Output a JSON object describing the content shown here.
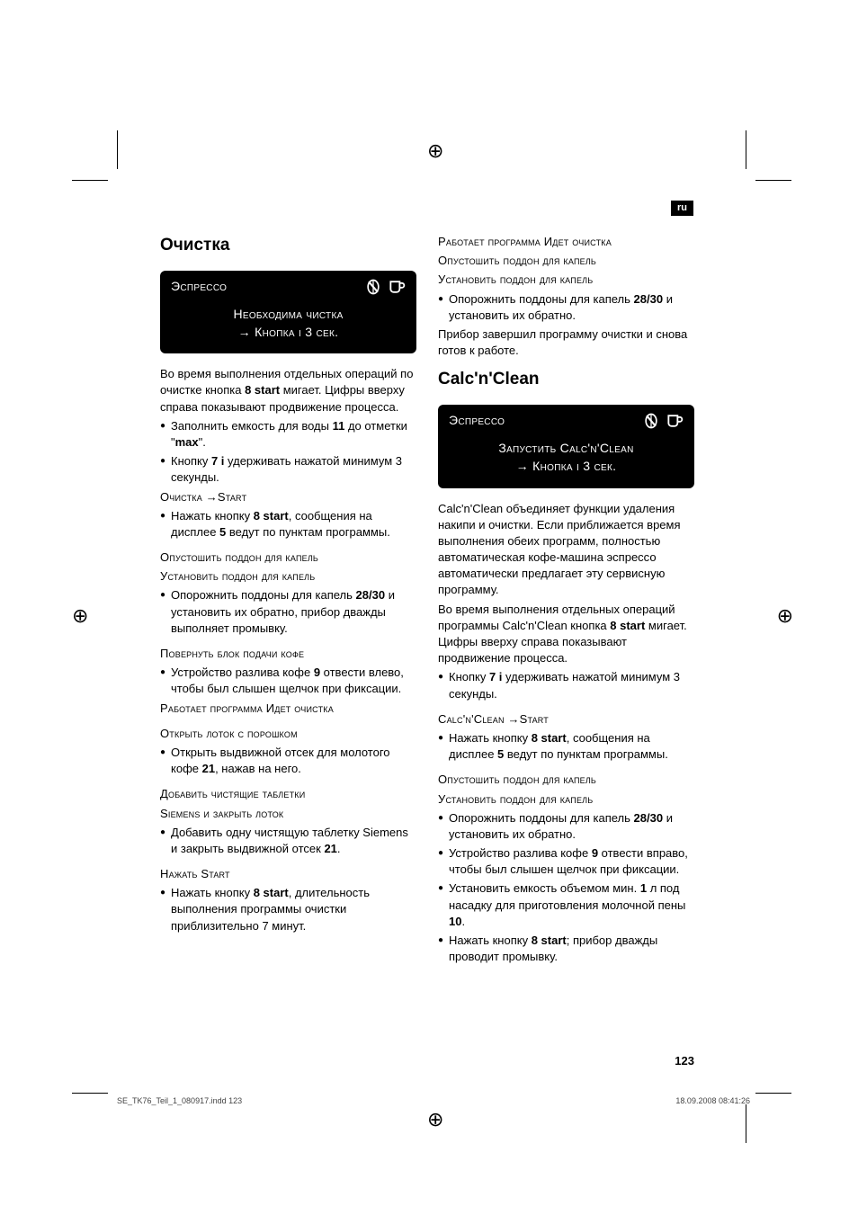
{
  "lang_tag": "ru",
  "page_number": "123",
  "footer": {
    "file": "SE_TK76_Teil_1_080917.indd   123",
    "date": "18.09.2008   08:41:26"
  },
  "left": {
    "heading": "Очистка",
    "display": {
      "label": "Эспрессо",
      "line1": "Необходима чистка",
      "line2": "→ Кнопка i 3 сек."
    },
    "intro1": "Во время выполнения отдельных операций по очистке кнопка 8 start мигает. Цифры вверху справа показывают продвижение процесса.",
    "b1": "Заполнить емкость для воды 11 до отметки \"max\".",
    "b2": "Кнопку 7 i удерживать нажатой минимум 3 секунды.",
    "sc_start": "Очистка →Start",
    "b3": "Нажать кнопку 8 start, сообщения на дисплее 5 ведут по пунктам программы.",
    "sc_drip1": "Опустошить поддон для капель",
    "sc_drip2": "Установить поддон для капель",
    "b4": "Опорожнить поддоны для капель 28/30 и установить их обратно, прибор дважды выполняет промывку.",
    "sc_turn": "Повернуть блок подачи кофе",
    "b5": "Устройство разлива кофе 9 отвести влево, чтобы был слышен щелчок при фиксации.",
    "sc_run": "Работает программа Идет очистка",
    "sc_open": "Открыть лоток с порошком",
    "b6": "Открыть выдвижной отсек для молотого кофе 21, нажав на него.",
    "sc_add1": "Добавить чистящие таблетки",
    "sc_add2": "Siemens и закрыть лоток",
    "b7": "Добавить одну чистящую таблетку Siemens и закрыть выдвижной отсек 21.",
    "sc_press": "Нажать Start",
    "b8": "Нажать кнопку 8 start, длительность выполнения программы очистки приблизительно 7 минут."
  },
  "right": {
    "top_sc1": "Работает программа Идет очистка",
    "top_sc2": "Опустошить поддон для капель",
    "top_sc3": "Установить поддон для капель",
    "b1": "Опорожнить поддоны для капель 28/30 и установить их обратно.",
    "p1": "Прибор завершил программу очистки и снова готов к работе.",
    "heading": "Calc'n'Clean",
    "display": {
      "label": "Эспрессо",
      "line1": "Запустить Calc'n'Clean",
      "line2": "→ Кнопка i 3 сек."
    },
    "intro1": "Calc'n'Clean объединяет функции удаления накипи и очистки. Если приближается время выполнения обеих программ, полностью автоматическая кофе-машина эспрессо автоматически предлагает эту сервисную программу.",
    "intro2": "Во время выполнения отдельных операций программы Calc'n'Clean кнопка 8 start мигает. Цифры вверху справа показывают продвижение процесса.",
    "b2": "Кнопку 7 i удерживать нажатой минимум 3 секунды.",
    "sc_start": "Calc'n'Clean →Start",
    "b3": "Нажать кнопку 8 start, сообщения на дисплее 5 ведут по пунктам программы.",
    "sc_drip1": "Опустошить поддон для капель",
    "sc_drip2": "Установить поддон для капель",
    "b4": "Опорожнить поддоны для капель 28/30 и установить их обратно.",
    "b5": "Устройство разлива кофе 9 отвести вправо, чтобы был слышен щелчок при фиксации.",
    "b6": "Установить емкость объемом мин. 1 л под насадку для приготовления молочной пены 10.",
    "b7": "Нажать кнопку 8 start; прибор дважды проводит промывку."
  },
  "bold_tokens": [
    "8 start",
    "11",
    "max",
    "7 i",
    "28/30",
    "5",
    "9",
    "21",
    "10",
    "1"
  ]
}
